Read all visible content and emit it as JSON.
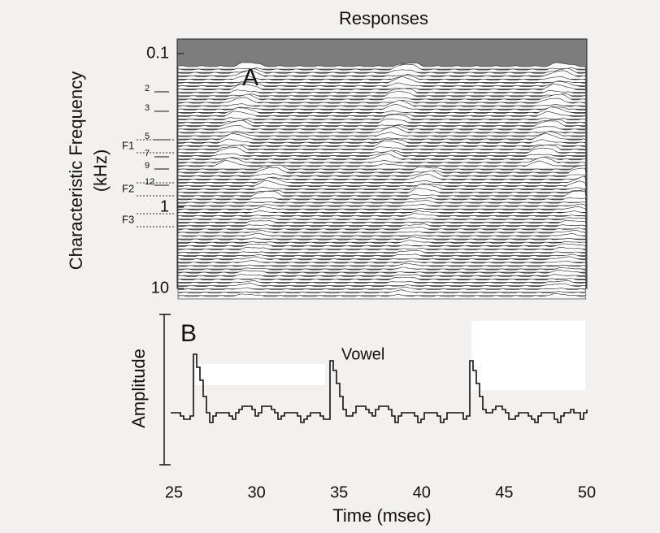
{
  "panel_a": {
    "title": "Responses",
    "label": "A",
    "y_label": [
      "Characteristic Frequency",
      "(kHz)"
    ],
    "yticks": [
      0.1,
      1,
      10
    ],
    "harmonic_labels": [
      2,
      3,
      5,
      7,
      9,
      12
    ],
    "formant_labels": [
      "F1",
      "F2",
      "F3"
    ]
  },
  "panel_b": {
    "label": "B",
    "annotation": "Vowel",
    "y_label": "Amplitude",
    "xticks": [
      25,
      30,
      35,
      40,
      45,
      50
    ],
    "x_label": "Time (msec)"
  }
}
